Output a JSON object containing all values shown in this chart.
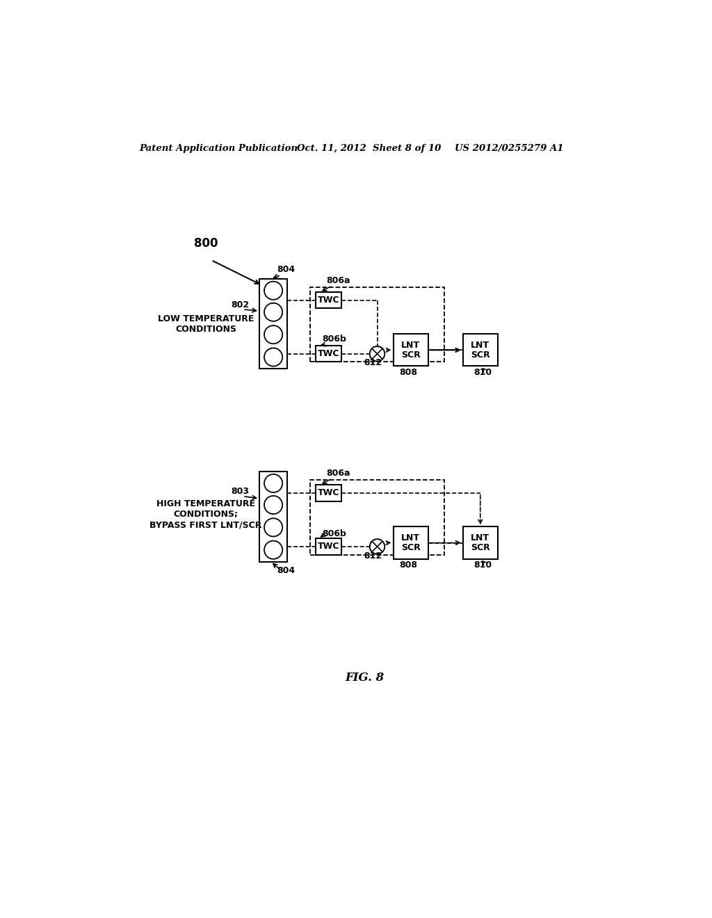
{
  "bg_color": "#ffffff",
  "header_left": "Patent Application Publication",
  "header_mid": "Oct. 11, 2012  Sheet 8 of 10",
  "header_right": "US 2012/0255279 A1",
  "fig_label": "FIG. 8",
  "diagram1": {
    "label_800": "800",
    "label_802": "802",
    "label_804": "804",
    "label_806a": "806a",
    "label_806b": "806b",
    "label_808": "808",
    "label_810": "810",
    "label_812": "812",
    "condition_text": "LOW TEMPERATURE\nCONDITIONS"
  },
  "diagram2": {
    "label_803": "803",
    "label_804": "804",
    "label_806a": "806a",
    "label_806b": "806b",
    "label_808": "808",
    "label_810": "810",
    "label_812": "812",
    "condition_text": "HIGH TEMPERATURE\nCONDITIONS;\nBYPASS FIRST LNT/SCR"
  }
}
